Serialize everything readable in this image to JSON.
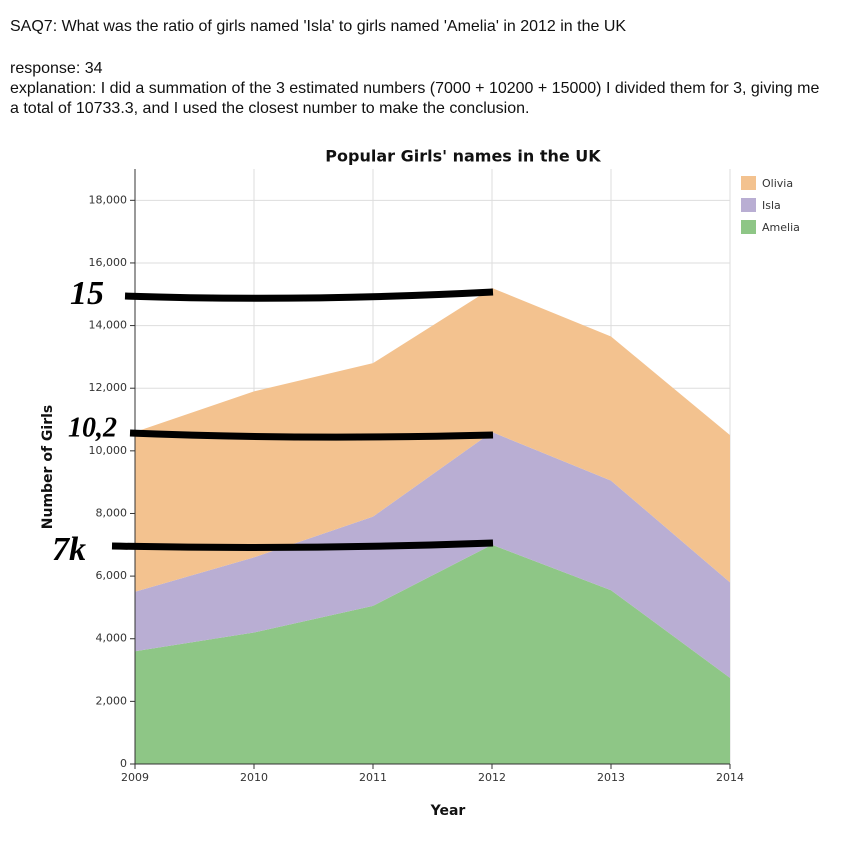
{
  "question": "SAQ7: What was the ratio of girls named 'Isla' to girls named 'Amelia' in 2012 in the UK",
  "response": "response: 34",
  "explanation": "explanation: I did a summation of the 3 estimated numbers (7000 + 10200 + 15000) I divided them for 3, giving me a total of 10733.3, and I used the closest number to make the conclusion.",
  "chart_data": {
    "type": "stacked-area",
    "title": "Popular Girls' names in the UK",
    "x_label": "Year",
    "y_label": "Number of Girls",
    "x": [
      2009,
      2010,
      2011,
      2012,
      2013,
      2014
    ],
    "xlim": [
      2009,
      2014
    ],
    "xticks": [
      2009,
      2010,
      2011,
      2012,
      2013,
      2014
    ],
    "ylim": [
      0,
      19000
    ],
    "yticks": [
      0,
      {
        "value": 2000,
        "label": "2,000"
      },
      {
        "value": 4000,
        "label": "4,000"
      },
      {
        "value": 6000,
        "label": "6,000"
      },
      {
        "value": 8000,
        "label": "8,000"
      },
      {
        "value": 10000,
        "label": "10,000"
      },
      {
        "value": 12000,
        "label": "12,000"
      },
      {
        "value": 14000,
        "label": "14,000"
      },
      {
        "value": 16000,
        "label": "16,000"
      },
      {
        "value": 18000,
        "label": "18,000"
      }
    ],
    "grid": true,
    "legend": "top-right",
    "series": [
      {
        "name": "Olivia",
        "color": "#f3c28f",
        "values": [
          5100,
          5300,
          4900,
          4600,
          4600,
          4700
        ]
      },
      {
        "name": "Isla",
        "color": "#b9aed3",
        "values": [
          1900,
          2400,
          2850,
          3600,
          3500,
          3050
        ]
      },
      {
        "name": "Amelia",
        "color": "#8ec686",
        "values": [
          3600,
          4200,
          5050,
          7000,
          5550,
          2750
        ]
      }
    ],
    "annotations": [
      "15",
      "10,2",
      "7k"
    ]
  }
}
